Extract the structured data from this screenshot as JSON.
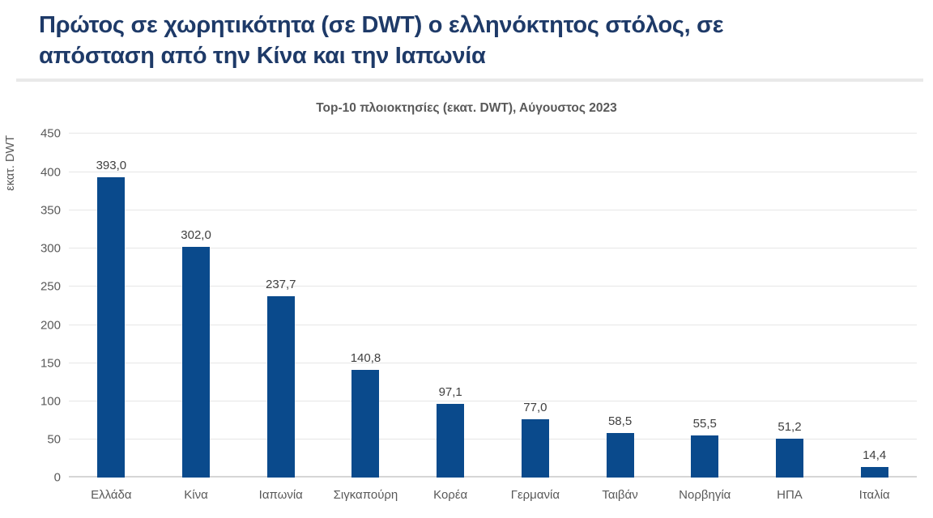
{
  "header": {
    "title_lines": [
      "Πρώτος σε χωρητικότητα (σε DWT) ο ελληνόκτητος στόλος, σε",
      "απόσταση από την Κίνα και την Ιαπωνία"
    ]
  },
  "colors": {
    "bar": "#0a4a8c",
    "title_text": "#1e3a68",
    "axis_text": "#595959",
    "value_label_text": "#404040",
    "gridline": "#e6e6e6",
    "divider": "#e9e9e9"
  },
  "chart_data": {
    "type": "bar",
    "title": "Top-10 πλοιοκτησίες (εκατ. DWT), Αύγουστος 2023",
    "xlabel": "",
    "ylabel": "εκατ. DWT",
    "categories": [
      "Ελλάδα",
      "Κίνα",
      "Ιαπωνία",
      "Σιγκαπούρη",
      "Κορέα",
      "Γερμανία",
      "Ταιβάν",
      "Νορβηγία",
      "ΗΠΑ",
      "Ιταλία"
    ],
    "values": [
      393.0,
      302.0,
      237.7,
      140.8,
      97.1,
      77.0,
      58.5,
      55.5,
      51.2,
      14.4
    ],
    "value_labels": [
      "393,0",
      "302,0",
      "237,7",
      "140,8",
      "97,1",
      "77,0",
      "58,5",
      "55,5",
      "51,2",
      "14,4"
    ],
    "ylim": [
      0,
      450
    ],
    "y_ticks": [
      0,
      50,
      100,
      150,
      200,
      250,
      300,
      350,
      400,
      450
    ],
    "grid": "horizontal-only",
    "legend": "none",
    "decimal_separator": ","
  }
}
